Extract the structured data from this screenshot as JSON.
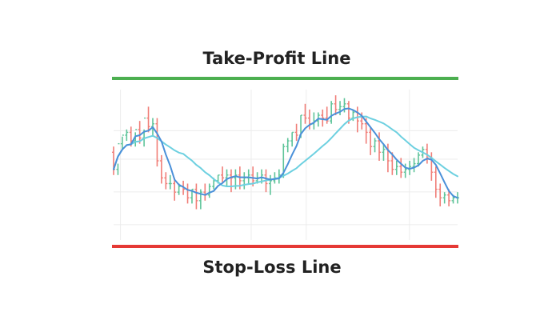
{
  "chart_data": {
    "type": "candlestick",
    "grid": true,
    "legend": "none",
    "labels": {
      "take_profit": "Take-Profit Line",
      "stop_loss": "Stop-Loss Line"
    },
    "levels": {
      "take_profit_color": "#4caf50",
      "stop_loss_color": "#e53935"
    },
    "colors": {
      "up": "#5fc49a",
      "down": "#f07e78",
      "ma_fast": "#4a90d9",
      "ma_slow": "#6dd0e0",
      "grid": "#ececec"
    },
    "y_range": [
      0,
      100
    ],
    "candles": [
      [
        56,
        60,
        44,
        40
      ],
      [
        44,
        48,
        62,
        40
      ],
      [
        62,
        67,
        68,
        58
      ],
      [
        68,
        72,
        70,
        64
      ],
      [
        70,
        74,
        64,
        60
      ],
      [
        64,
        70,
        72,
        60
      ],
      [
        72,
        78,
        66,
        62
      ],
      [
        66,
        72,
        80,
        60
      ],
      [
        80,
        88,
        74,
        70
      ],
      [
        74,
        80,
        76,
        68
      ],
      [
        76,
        80,
        50,
        46
      ],
      [
        50,
        54,
        38,
        34
      ],
      [
        38,
        42,
        34,
        30
      ],
      [
        34,
        40,
        34,
        30
      ],
      [
        34,
        38,
        28,
        22
      ],
      [
        28,
        34,
        32,
        26
      ],
      [
        32,
        36,
        30,
        26
      ],
      [
        30,
        34,
        24,
        20
      ],
      [
        24,
        30,
        30,
        20
      ],
      [
        30,
        34,
        22,
        16
      ],
      [
        22,
        30,
        28,
        16
      ],
      [
        28,
        34,
        26,
        22
      ],
      [
        26,
        34,
        32,
        24
      ],
      [
        32,
        38,
        36,
        30
      ],
      [
        36,
        40,
        40,
        34
      ],
      [
        40,
        46,
        38,
        34
      ],
      [
        38,
        44,
        40,
        32
      ],
      [
        40,
        44,
        38,
        28
      ],
      [
        38,
        44,
        40,
        30
      ],
      [
        40,
        46,
        36,
        30
      ],
      [
        36,
        42,
        38,
        30
      ],
      [
        38,
        44,
        40,
        34
      ],
      [
        40,
        46,
        36,
        32
      ],
      [
        36,
        42,
        38,
        34
      ],
      [
        38,
        44,
        40,
        34
      ],
      [
        40,
        44,
        34,
        28
      ],
      [
        34,
        40,
        36,
        26
      ],
      [
        36,
        42,
        38,
        34
      ],
      [
        38,
        44,
        40,
        34
      ],
      [
        40,
        62,
        60,
        38
      ],
      [
        60,
        66,
        64,
        56
      ],
      [
        64,
        70,
        70,
        60
      ],
      [
        70,
        76,
        68,
        64
      ],
      [
        68,
        82,
        82,
        66
      ],
      [
        82,
        90,
        80,
        76
      ],
      [
        80,
        86,
        76,
        72
      ],
      [
        76,
        84,
        78,
        72
      ],
      [
        78,
        84,
        82,
        74
      ],
      [
        82,
        86,
        80,
        74
      ],
      [
        80,
        88,
        78,
        76
      ],
      [
        78,
        92,
        90,
        76
      ],
      [
        90,
        96,
        86,
        82
      ],
      [
        86,
        92,
        88,
        82
      ],
      [
        88,
        94,
        90,
        84
      ],
      [
        90,
        92,
        80,
        76
      ],
      [
        80,
        86,
        84,
        78
      ],
      [
        84,
        88,
        78,
        70
      ],
      [
        78,
        84,
        76,
        72
      ],
      [
        76,
        80,
        70,
        62
      ],
      [
        70,
        74,
        60,
        54
      ],
      [
        60,
        66,
        64,
        56
      ],
      [
        64,
        70,
        56,
        50
      ],
      [
        56,
        62,
        58,
        50
      ],
      [
        58,
        62,
        50,
        42
      ],
      [
        50,
        56,
        44,
        40
      ],
      [
        44,
        50,
        46,
        40
      ],
      [
        46,
        52,
        42,
        38
      ],
      [
        42,
        48,
        44,
        38
      ],
      [
        44,
        50,
        46,
        40
      ],
      [
        46,
        52,
        48,
        42
      ],
      [
        48,
        56,
        54,
        46
      ],
      [
        54,
        60,
        58,
        52
      ],
      [
        58,
        62,
        52,
        48
      ],
      [
        52,
        56,
        42,
        36
      ],
      [
        42,
        46,
        30,
        24
      ],
      [
        30,
        34,
        24,
        18
      ],
      [
        24,
        28,
        26,
        20
      ],
      [
        26,
        30,
        22,
        18
      ],
      [
        22,
        26,
        24,
        20
      ],
      [
        24,
        28,
        24,
        20
      ]
    ]
  }
}
